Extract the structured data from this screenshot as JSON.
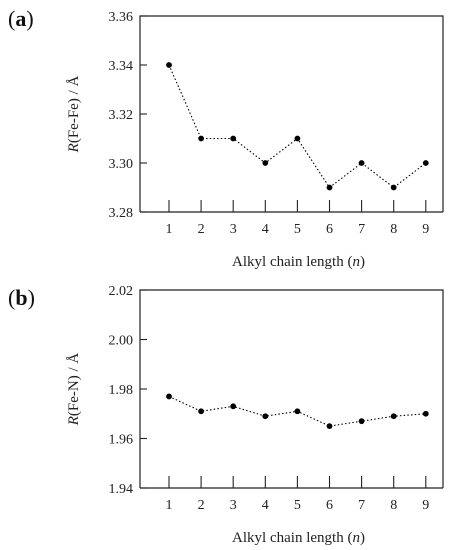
{
  "panels": [
    {
      "label_open": "(",
      "label_letter": "a",
      "label_close": ")"
    },
    {
      "label_open": "(",
      "label_letter": "b",
      "label_close": ")"
    }
  ],
  "chart_data": [
    {
      "type": "line",
      "title": "",
      "xlabel_pre": "Alkyl chain length (",
      "xlabel_var": "n",
      "xlabel_post": ")",
      "ylabel_var": "R",
      "ylabel_rest": "(Fe-Fe) / Å",
      "x": [
        1,
        2,
        3,
        4,
        5,
        6,
        7,
        8,
        9
      ],
      "values": [
        3.34,
        3.31,
        3.31,
        3.3,
        3.31,
        3.29,
        3.3,
        3.29,
        3.3
      ],
      "ylim": [
        3.28,
        3.36
      ],
      "yticks": [
        "3.28",
        "3.30",
        "3.32",
        "3.34",
        "3.36"
      ],
      "xticks": [
        "1",
        "2",
        "3",
        "4",
        "5",
        "6",
        "7",
        "8",
        "9"
      ],
      "line_style": "dotted",
      "grid": false,
      "color": "#000000"
    },
    {
      "type": "line",
      "title": "",
      "xlabel_pre": "Alkyl chain length (",
      "xlabel_var": "n",
      "xlabel_post": ")",
      "ylabel_var": "R",
      "ylabel_rest": "(Fe-N) / Å",
      "x": [
        1,
        2,
        3,
        4,
        5,
        6,
        7,
        8,
        9
      ],
      "values": [
        1.977,
        1.971,
        1.973,
        1.969,
        1.971,
        1.965,
        1.967,
        1.969,
        1.97
      ],
      "ylim": [
        1.94,
        2.02
      ],
      "yticks": [
        "1.94",
        "1.96",
        "1.98",
        "2.00",
        "2.02"
      ],
      "xticks": [
        "1",
        "2",
        "3",
        "4",
        "5",
        "6",
        "7",
        "8",
        "9"
      ],
      "line_style": "dotted",
      "grid": false,
      "color": "#000000"
    }
  ]
}
